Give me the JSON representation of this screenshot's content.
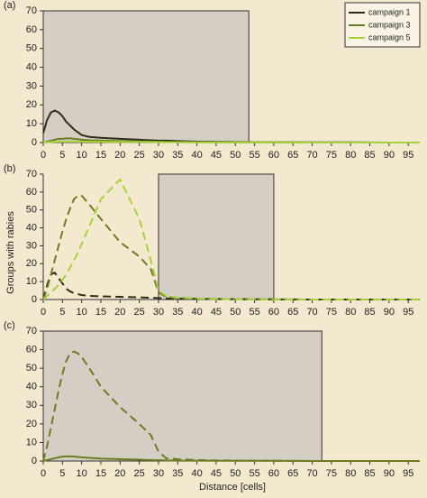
{
  "axis_labels": {
    "y": "Groups with rabies",
    "x": "Distance [cells]"
  },
  "chart_data": [
    {
      "type": "line",
      "panel_label": "(a)",
      "xlim": [
        0,
        98
      ],
      "ylim": [
        0,
        70
      ],
      "xticks": [
        0,
        5,
        10,
        15,
        20,
        25,
        30,
        35,
        40,
        45,
        50,
        55,
        60,
        65,
        70,
        75,
        80,
        85,
        90,
        95
      ],
      "yticks": [
        0,
        10,
        20,
        30,
        40,
        50,
        60,
        70
      ],
      "shaded_xlim": [
        0,
        53.5
      ],
      "legend": "upper right",
      "x": [
        0,
        1,
        2,
        3,
        4,
        5,
        6,
        7,
        8,
        9,
        10,
        12,
        15,
        20,
        25,
        28,
        30,
        32,
        35,
        40,
        50,
        60,
        70,
        80,
        90,
        98
      ],
      "series": [
        {
          "name": "campaign 1",
          "color": "#2f2f14",
          "dashed": false,
          "values": [
            5,
            12,
            16,
            17,
            16,
            14,
            11,
            9,
            7,
            5.5,
            4,
            3,
            2.5,
            2,
            1.5,
            1.2,
            1,
            1,
            0.8,
            0.5,
            0.3,
            0.2,
            0.1,
            0.1,
            0,
            0
          ]
        },
        {
          "name": "campaign 3",
          "color": "#6e7b22",
          "dashed": false,
          "values": [
            0,
            0.5,
            1,
            1.5,
            2,
            2,
            2.2,
            2.2,
            2,
            1.8,
            1.5,
            1.2,
            1,
            0.8,
            0.6,
            0.5,
            0.4,
            0.3,
            0.2,
            0.2,
            0.1,
            0.1,
            0,
            0,
            0,
            0
          ]
        },
        {
          "name": "campaign 5",
          "color": "#a6d23a",
          "dashed": false,
          "values": [
            0,
            0.2,
            0.3,
            0.4,
            0.5,
            0.5,
            0.5,
            0.5,
            0.5,
            0.5,
            0.5,
            0.4,
            0.4,
            0.3,
            0.3,
            0.3,
            0.2,
            0.2,
            0.2,
            0.1,
            0.1,
            0.1,
            0,
            0,
            0,
            0
          ]
        }
      ]
    },
    {
      "type": "line",
      "panel_label": "(b)",
      "xlim": [
        0,
        98
      ],
      "ylim": [
        0,
        70
      ],
      "xticks": [
        0,
        5,
        10,
        15,
        20,
        25,
        30,
        35,
        40,
        45,
        50,
        55,
        60,
        65,
        70,
        75,
        80,
        85,
        90,
        95
      ],
      "yticks": [
        0,
        10,
        20,
        30,
        40,
        50,
        60,
        70
      ],
      "shaded_xlim": [
        30,
        60
      ],
      "x": [
        0,
        1,
        2,
        3,
        4,
        5,
        6,
        7,
        8,
        9,
        10,
        12,
        15,
        20,
        25,
        28,
        30,
        32,
        35,
        40,
        50,
        60,
        70,
        80,
        90,
        98
      ],
      "series": [
        {
          "name": "campaign 1",
          "color": "#2f2f14",
          "dashed": true,
          "values": [
            0,
            8,
            14,
            15,
            12,
            9,
            6,
            4.5,
            3.5,
            3,
            2.5,
            2,
            1.8,
            1.5,
            1.2,
            1,
            0.8,
            0.6,
            0.5,
            0.3,
            0.2,
            0.1,
            0,
            0,
            0,
            0
          ]
        },
        {
          "name": "campaign 3",
          "color": "#6e7b22",
          "dashed": true,
          "values": [
            0,
            6,
            14,
            22,
            30,
            38,
            45,
            51,
            56,
            58,
            58,
            53,
            45,
            32,
            24,
            17,
            4,
            1.5,
            0.8,
            0.5,
            0.2,
            0.1,
            0,
            0,
            0,
            0
          ]
        },
        {
          "name": "campaign 5",
          "color": "#a6d23a",
          "dashed": true,
          "values": [
            0,
            2,
            4,
            6,
            8,
            11,
            14,
            18,
            22,
            26,
            31,
            41,
            56,
            67,
            45,
            22,
            5,
            2,
            1,
            0.5,
            0.2,
            0.1,
            0,
            0,
            0,
            0
          ]
        }
      ]
    },
    {
      "type": "line",
      "panel_label": "(c)",
      "xlim": [
        0,
        98
      ],
      "ylim": [
        0,
        70
      ],
      "xticks": [
        0,
        5,
        10,
        15,
        20,
        25,
        30,
        35,
        40,
        45,
        50,
        55,
        60,
        65,
        70,
        75,
        80,
        85,
        90,
        95
      ],
      "yticks": [
        0,
        10,
        20,
        30,
        40,
        50,
        60,
        70
      ],
      "shaded_xlim": [
        0,
        72.5
      ],
      "x": [
        0,
        1,
        2,
        3,
        4,
        5,
        6,
        7,
        8,
        9,
        10,
        12,
        15,
        20,
        25,
        28,
        30,
        32,
        35,
        40,
        50,
        60,
        70,
        80,
        90,
        98
      ],
      "series": [
        {
          "name": "campaign 3",
          "color": "#6e7b22",
          "dashed": true,
          "values": [
            0,
            8,
            18,
            28,
            38,
            47,
            54,
            58,
            59,
            58,
            56,
            50,
            40,
            29,
            20,
            14,
            5,
            1.5,
            1,
            0.5,
            0.2,
            0.1,
            0,
            0,
            0,
            0
          ]
        },
        {
          "name": "campaign 3",
          "color": "#6e7b22",
          "dashed": false,
          "values": [
            0,
            0.5,
            1,
            1.5,
            2,
            2.3,
            2.5,
            2.5,
            2.4,
            2.2,
            2,
            1.7,
            1.3,
            1,
            0.7,
            0.5,
            0.4,
            0.3,
            0.2,
            0.2,
            0.1,
            0.1,
            0,
            0,
            0,
            0
          ]
        }
      ]
    }
  ]
}
